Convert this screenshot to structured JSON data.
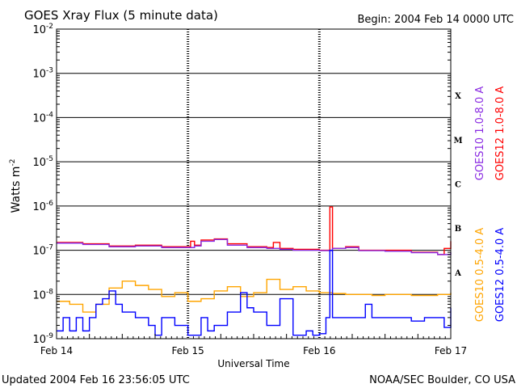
{
  "chart_data": {
    "type": "line",
    "title": "GOES Xray Flux (5 minute data)",
    "begin_label": "Begin:  2004 Feb 14 0000 UTC",
    "ylabel_main": "Watts m",
    "ylabel_sup": "-2",
    "xlabel": "Universal Time",
    "y_scale": "log",
    "ylim": [
      1e-09,
      0.01
    ],
    "y_ticks": [
      {
        "base": "10",
        "exp": "-2"
      },
      {
        "base": "10",
        "exp": "-3"
      },
      {
        "base": "10",
        "exp": "-4"
      },
      {
        "base": "10",
        "exp": "-5"
      },
      {
        "base": "10",
        "exp": "-6"
      },
      {
        "base": "10",
        "exp": "-7"
      },
      {
        "base": "10",
        "exp": "-8"
      },
      {
        "base": "10",
        "exp": "-9"
      }
    ],
    "xlim_days": [
      0,
      3
    ],
    "x_ticks": [
      "Feb 14",
      "Feb 15",
      "Feb 16",
      "Feb 17"
    ],
    "flare_classes": [
      "X",
      "M",
      "C",
      "B",
      "A"
    ],
    "grid": "horizontal at each decade 1e-8 to 1e-3, dashed day markers",
    "legend_position": "right",
    "series": [
      {
        "name": "GOES12 1.0-8.0 A",
        "color": "#ff0000",
        "x_days": [
          0,
          0.2,
          0.4,
          0.6,
          0.8,
          1.0,
          1.02,
          1.05,
          1.1,
          1.2,
          1.3,
          1.45,
          1.6,
          1.65,
          1.7,
          1.8,
          2.0,
          2.05,
          2.08,
          2.1,
          2.2,
          2.3,
          2.5,
          2.7,
          2.9,
          2.95,
          3.0
        ],
        "y": [
          1.5e-07,
          1.4e-07,
          1.25e-07,
          1.3e-07,
          1.2e-07,
          1.2e-07,
          1.6e-07,
          1.3e-07,
          1.7e-07,
          1.8e-07,
          1.4e-07,
          1.2e-07,
          1.15e-07,
          1.5e-07,
          1.1e-07,
          1.05e-07,
          1e-07,
          1e-07,
          9.5e-07,
          1.1e-07,
          1.2e-07,
          1e-07,
          1e-07,
          9e-08,
          8e-08,
          1.1e-07,
          1.6e-07
        ]
      },
      {
        "name": "GOES10 1.0-8.0 A",
        "color": "#8a2be2",
        "x_days": [
          0,
          0.2,
          0.4,
          0.6,
          0.8,
          1.0,
          1.05,
          1.1,
          1.2,
          1.3,
          1.45,
          1.6,
          1.7,
          1.8,
          2.0,
          2.1,
          2.2,
          2.3,
          2.5,
          2.7,
          2.9,
          3.0
        ],
        "y": [
          1.45e-07,
          1.35e-07,
          1.2e-07,
          1.25e-07,
          1.15e-07,
          1.15e-07,
          1.25e-07,
          1.6e-07,
          1.75e-07,
          1.3e-07,
          1.15e-07,
          1.1e-07,
          1.05e-07,
          1e-07,
          9.8e-08,
          1.1e-07,
          1.15e-07,
          9.8e-08,
          9.5e-08,
          8.8e-08,
          8e-08,
          9e-08
        ]
      },
      {
        "name": "GOES10 0.5-4.0 A",
        "color": "#ffa500",
        "x_days": [
          0,
          0.1,
          0.2,
          0.3,
          0.4,
          0.5,
          0.6,
          0.7,
          0.8,
          0.9,
          1.0,
          1.1,
          1.2,
          1.3,
          1.4,
          1.5,
          1.6,
          1.7,
          1.8,
          1.9,
          2.0,
          2.1,
          2.2,
          2.3,
          2.4,
          2.5,
          2.6,
          2.7,
          2.8,
          2.9,
          3.0
        ],
        "y": [
          7e-09,
          6e-09,
          4e-09,
          6e-09,
          1.4e-08,
          2e-08,
          1.6e-08,
          1.3e-08,
          9e-09,
          1.1e-08,
          7e-09,
          8e-09,
          1.2e-08,
          1.5e-08,
          9e-09,
          1.1e-08,
          2.2e-08,
          1.3e-08,
          1.5e-08,
          1.2e-08,
          1.1e-08,
          1.05e-08,
          1e-08,
          1e-08,
          9.5e-09,
          1e-08,
          1e-08,
          9.5e-09,
          9.5e-09,
          1e-08,
          1.1e-08
        ]
      },
      {
        "name": "GOES12 0.5-4.0 A",
        "color": "#0000ff",
        "x_days": [
          0,
          0.05,
          0.1,
          0.15,
          0.2,
          0.25,
          0.3,
          0.35,
          0.4,
          0.45,
          0.5,
          0.6,
          0.7,
          0.75,
          0.8,
          0.9,
          1.0,
          1.1,
          1.15,
          1.2,
          1.3,
          1.4,
          1.45,
          1.5,
          1.6,
          1.7,
          1.8,
          1.9,
          1.95,
          2.0,
          2.05,
          2.08,
          2.1,
          2.2,
          2.3,
          2.35,
          2.4,
          2.5,
          2.6,
          2.7,
          2.8,
          2.9,
          2.95,
          3.0
        ],
        "y": [
          1.5e-09,
          3e-09,
          1.5e-09,
          3e-09,
          1.5e-09,
          3e-09,
          6e-09,
          8e-09,
          1.2e-08,
          6e-09,
          4e-09,
          3e-09,
          2e-09,
          1.2e-09,
          3e-09,
          2e-09,
          1.2e-09,
          3e-09,
          1.5e-09,
          2e-09,
          4e-09,
          1.1e-08,
          5e-09,
          4e-09,
          2e-09,
          8e-09,
          1.2e-09,
          1.5e-09,
          1.2e-09,
          1.3e-09,
          3e-09,
          1e-07,
          3e-09,
          3e-09,
          3e-09,
          6e-09,
          3e-09,
          3e-09,
          3e-09,
          2.5e-09,
          3e-09,
          3e-09,
          1.8e-09,
          5e-09
        ]
      }
    ]
  },
  "footer": {
    "updated": "Updated 2004 Feb 16 23:56:05 UTC",
    "source": "NOAA/SEC Boulder, CO USA"
  }
}
